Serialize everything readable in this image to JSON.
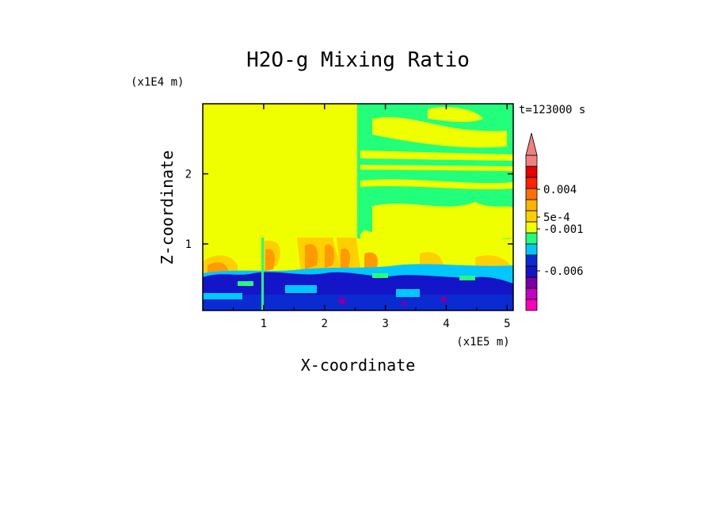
{
  "chart_data": {
    "type": "heatmap",
    "title": "H2O-g Mixing Ratio",
    "xlabel": "X-coordinate",
    "ylabel": "Z-coordinate",
    "x_unit": "(x1E5 m)",
    "y_unit": "(x1E4 m)",
    "time_label": "t=123000 s",
    "xlim": [
      0.0,
      5.1
    ],
    "ylim": [
      0.05,
      3.0
    ],
    "x_ticks": [
      "1",
      "2",
      "3",
      "4",
      "5"
    ],
    "y_ticks": [
      "1",
      "2"
    ],
    "colorbar": {
      "colors": [
        "#ff00b4",
        "#c400c4",
        "#7800a8",
        "#1414c8",
        "#0a2ad2",
        "#00c8ff",
        "#22ff7a",
        "#f0ff00",
        "#ffd000",
        "#ffb400",
        "#ff7000",
        "#ff2000",
        "#e60000",
        "#f08080"
      ],
      "labels": [
        "-0.006",
        "-0.001",
        "5e-4",
        "0.004"
      ],
      "extends_max": true
    },
    "regions": [
      {
        "label": "upper-left",
        "value_class": "yellow"
      },
      {
        "label": "upper-right",
        "value_class": "green-yellow"
      },
      {
        "label": "boundary-layer",
        "value_class": "blue"
      }
    ]
  }
}
